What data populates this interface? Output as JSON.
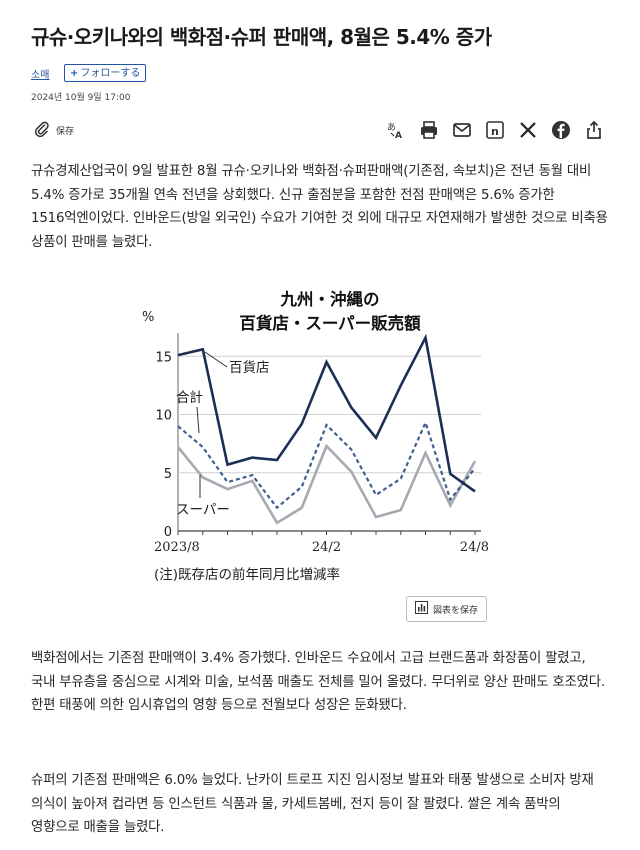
{
  "article": {
    "title": "규슈·오키나와의 백화점·슈퍼 판매액, 8월은 5.4% 증가",
    "category": "소매",
    "follow_label": "フォローする",
    "date": "2024년 10월 9일 17:00",
    "save_label": "保存",
    "paragraphs": [
      "규슈경제산업국이 9일 발표한 8월 규슈·오키나와 백화점·슈퍼판매액(기존점, 속보치)은 전년 동월 대비 5.4% 증가로 35개월 연속 전년을 상회했다. 신규 출점분을 포함한 전점 판매액은 5.6% 증가한 1516억엔이었다. 인바운드(방일 외국인) 수요가 기여한 것 외에 대규모 자연재해가 발생한 것으로 비축용 상품이 판매를 늘렸다.",
      "백화점에서는 기존점 판매액이 3.4% 증가했다. 인바운드 수요에서 고급 브랜드품과 화장품이 팔렸고, 국내 부유층을 중심으로 시계와 미술, 보석품 매출도 전체를 밀어 올렸다. 무더위로 양산 판매도 호조였다. 한편 태풍에 의한 임시휴업의 영향 등으로 전월보다 성장은 둔화됐다.",
      "슈퍼의 기존점 판매액은 6.0% 늘었다. 난카이 트로프 지진 임시정보 발표와 태풍 발생으로 소비자 방재 의식이 높아져 컵라면 등 인스턴트 식품과 물, 카세트봄베, 전지 등이 잘 팔렸다. 쌀은 계속 품박의 영향으로 매출을 늘렸다."
    ]
  },
  "share_icons": [
    "translate-icon",
    "print-icon",
    "mail-icon",
    "n-icon",
    "x-icon",
    "facebook-icon",
    "share-icon"
  ],
  "chart_button_label": "図表を保存",
  "colors": {
    "department": "#1b2f55",
    "total": "#3f5f8f",
    "super": "#a8a8b2",
    "link": "#2254a3"
  },
  "chart_data": {
    "type": "line",
    "title_line1": "九州・沖縄の",
    "title_line2": "百貨店・スーパー販売額",
    "ylabel": "%",
    "ylim": [
      0,
      17
    ],
    "yticks": [
      0,
      5,
      10,
      15
    ],
    "xtick_labels": [
      {
        "i": 0,
        "label": "2023/8"
      },
      {
        "i": 6,
        "label": "24/2"
      },
      {
        "i": 12,
        "label": "24/8"
      }
    ],
    "note": "(注)既存店の前年同月比増減率",
    "series": [
      {
        "name": "百貨店",
        "style": "solid",
        "values": [
          15.1,
          15.6,
          5.7,
          6.3,
          6.1,
          9.2,
          14.5,
          10.6,
          8.0,
          12.5,
          16.6,
          4.9,
          3.4
        ]
      },
      {
        "name": "合計",
        "style": "dashed",
        "values": [
          9.0,
          7.2,
          4.2,
          4.8,
          2.0,
          3.8,
          9.1,
          7.0,
          3.1,
          4.5,
          9.3,
          2.7,
          5.4
        ]
      },
      {
        "name": "スーパー",
        "style": "solid",
        "values": [
          7.2,
          4.6,
          3.6,
          4.3,
          0.7,
          2.0,
          7.3,
          5.1,
          1.2,
          1.8,
          6.7,
          2.2,
          6.0
        ]
      }
    ]
  }
}
